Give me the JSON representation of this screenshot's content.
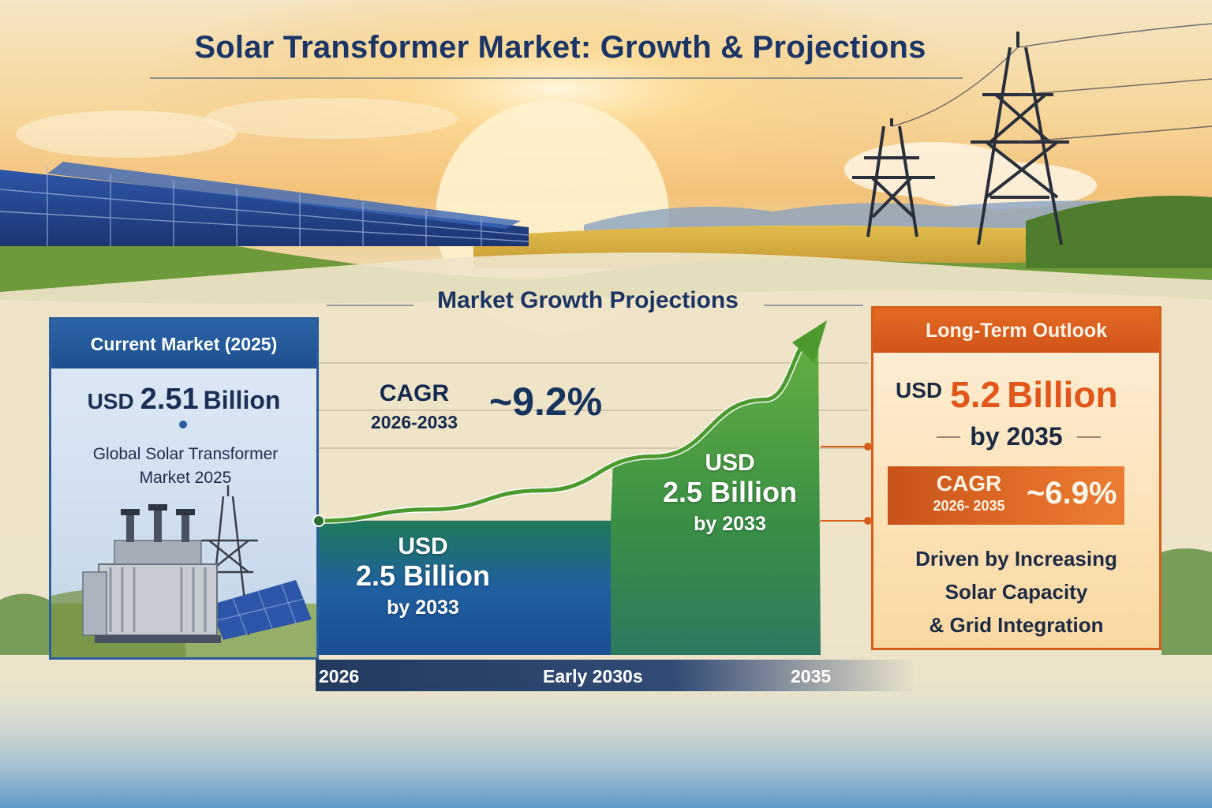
{
  "title": "Solar Transformer Market: Growth & Projections",
  "section_title": "Market Growth Projections",
  "current_market": {
    "heading": "Current Market (2025)",
    "currency": "USD",
    "amount": "2.51",
    "unit": "Billion",
    "description_line1": "Global Solar Transformer",
    "description_line2": "Market 2025"
  },
  "cagr_near": {
    "label": "CAGR",
    "period": "2026-2033",
    "value": "~9.2%"
  },
  "long_term": {
    "heading": "Long-Term Outlook",
    "currency": "USD",
    "amount": "5.2",
    "unit": "Billion",
    "by": "by 2035",
    "cagr_label": "CAGR",
    "cagr_period": "2026- 2035",
    "cagr_value": "~6.9%",
    "desc_line1": "Driven by Increasing",
    "desc_line2": "Solar Capacity",
    "desc_line3": "& Grid Integration"
  },
  "colors": {
    "primary_blue": "#2a5e9c",
    "bar_blue": "#1f5fa0",
    "bar_green": "#3e9a3c",
    "arrow_green": "#4c9a2e",
    "accent_orange": "#e2561a"
  },
  "chart_data": {
    "type": "area",
    "title": "Market Growth Projections",
    "xlabel": "",
    "ylabel": "",
    "x_ticks": [
      "2026",
      "Early 2030s",
      "2035"
    ],
    "grid": true,
    "bars": [
      {
        "currency": "USD",
        "amount": "2.5 Billion",
        "by": "by 2033"
      },
      {
        "currency": "USD",
        "amount": "2.5 Billion",
        "by": "by 2033"
      }
    ],
    "trend": {
      "x": [
        2026,
        2028,
        2030,
        2032,
        2034,
        2035
      ],
      "y": [
        0.0,
        0.06,
        0.16,
        0.34,
        0.64,
        1.0
      ]
    }
  }
}
